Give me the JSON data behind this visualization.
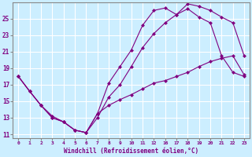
{
  "xlabel": "Windchill (Refroidissement éolien,°C)",
  "background_color": "#cceeff",
  "grid_color": "#ffffff",
  "line_color": "#800080",
  "xtick_labels": [
    "0",
    "1",
    "2",
    "3",
    "4",
    "5",
    "6",
    "7",
    "8",
    "9",
    "101112",
    "",
    "161718192021222 3"
  ],
  "x_labels": [
    "0",
    "1",
    "2",
    "3",
    "4",
    "5",
    "6",
    "7",
    "8",
    "9",
    "101112",
    "16171819202122",
    "23"
  ],
  "all_labels": [
    "0",
    "1",
    "2",
    "3",
    "4",
    "5",
    "6",
    "7",
    "8",
    "9",
    "10",
    "11",
    "12",
    "16",
    "17",
    "18",
    "19",
    "20",
    "21",
    "22",
    "23"
  ],
  "line1_y": [
    18.0,
    16.2,
    14.5,
    13.2,
    12.5,
    11.5,
    11.2,
    13.5,
    17.2,
    19.2,
    21.2,
    24.2,
    26.0,
    26.3,
    25.5,
    26.2,
    25.2,
    24.5,
    20.5,
    18.5,
    18.0
  ],
  "line2_y": [
    18.0,
    16.2,
    14.5,
    13.0,
    12.5,
    11.5,
    11.2,
    13.0,
    15.5,
    17.0,
    19.2,
    21.5,
    23.2,
    24.5,
    25.5,
    26.8,
    26.5,
    26.0,
    25.2,
    24.5,
    20.5
  ],
  "line3_y": [
    18.0,
    16.2,
    14.5,
    13.0,
    12.5,
    11.5,
    11.2,
    13.5,
    14.5,
    15.2,
    15.8,
    16.5,
    17.2,
    17.5,
    18.0,
    18.5,
    19.2,
    19.8,
    20.2,
    20.5,
    18.2
  ],
  "ylim": [
    10.5,
    27.0
  ],
  "yticks": [
    11,
    13,
    15,
    17,
    19,
    21,
    23,
    25
  ]
}
